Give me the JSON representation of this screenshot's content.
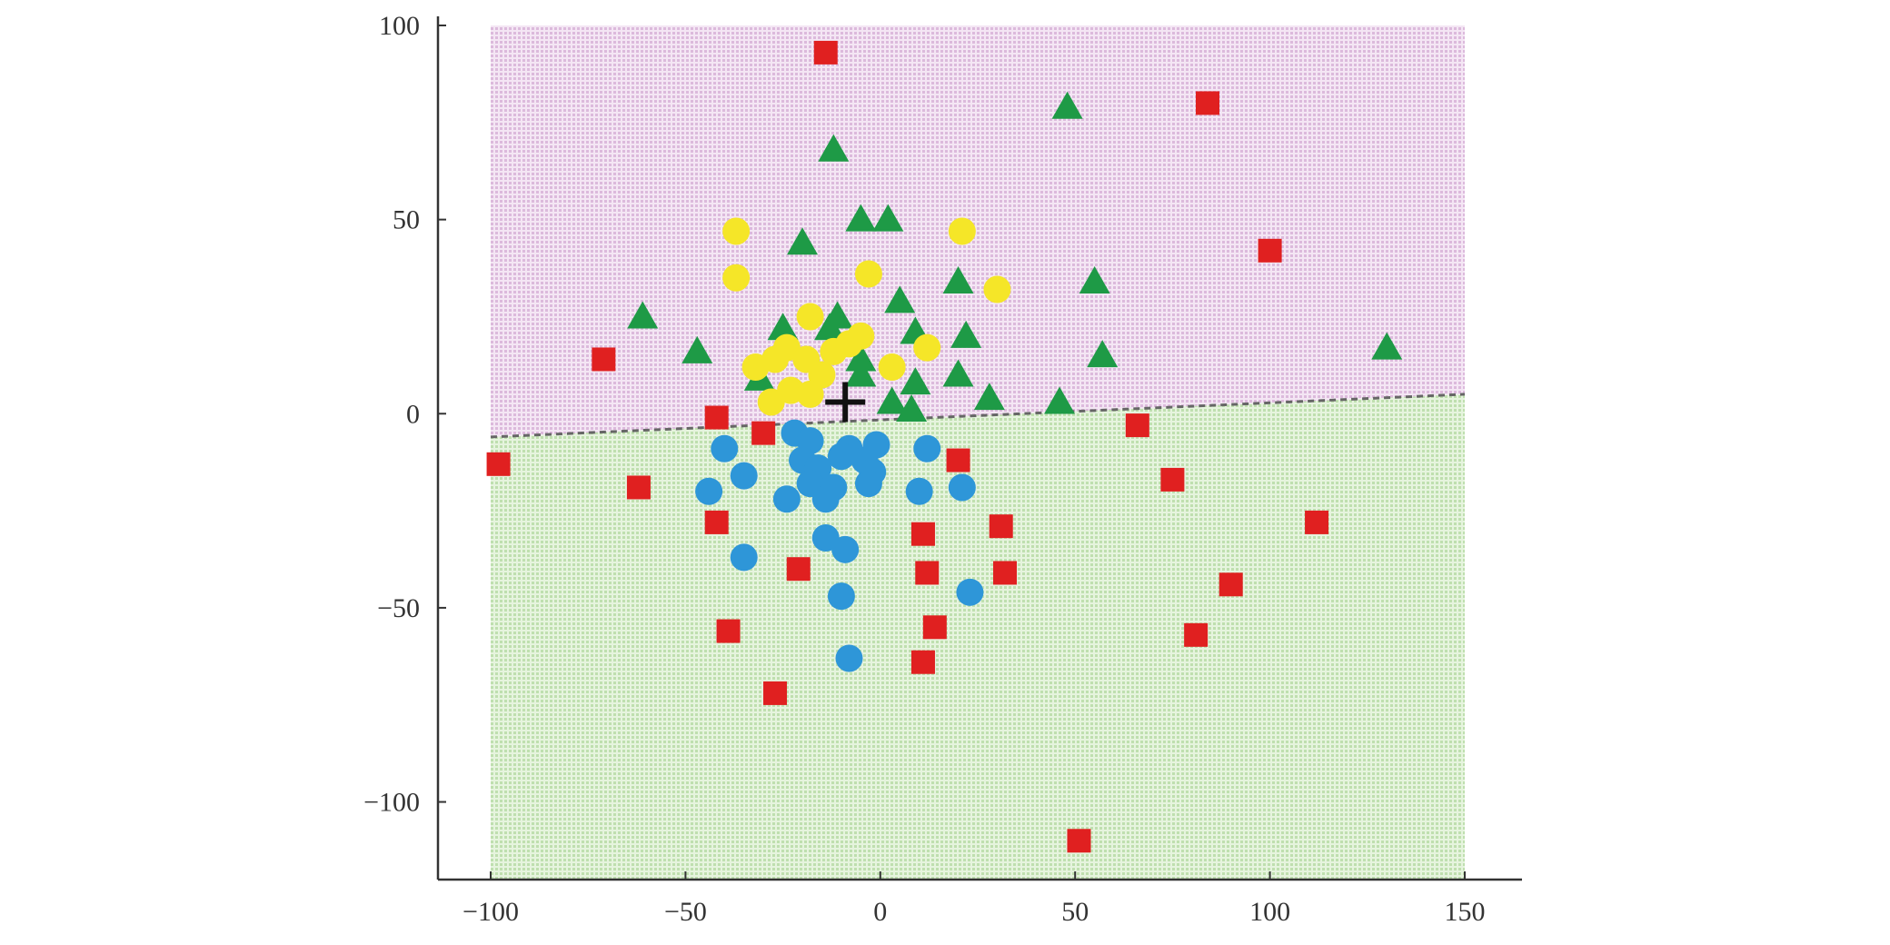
{
  "chart_data": {
    "type": "scatter",
    "title": "",
    "xlabel": "",
    "ylabel": "",
    "xlim": [
      -100,
      150
    ],
    "ylim": [
      -120,
      100
    ],
    "xticks": [
      -100,
      -50,
      0,
      50,
      100,
      150
    ],
    "yticks": [
      100,
      50,
      0,
      -50,
      -100
    ],
    "xtick_labels": [
      "−100",
      "−50",
      "0",
      "50",
      "100",
      "150"
    ],
    "ytick_labels": [
      "100",
      "50",
      "0",
      "−50",
      "−100"
    ],
    "grid": false,
    "legend": "none",
    "background_regions": [
      {
        "name": "upper region",
        "color": "#efd9ef"
      },
      {
        "name": "lower region",
        "color": "#dcf0d2"
      }
    ],
    "decision_boundary": {
      "style": "dashed",
      "color": "#666666",
      "x": [
        -100,
        150
      ],
      "y": [
        -6,
        5
      ]
    },
    "center_marker": {
      "shape": "plus",
      "color": "#111111",
      "x": -9,
      "y": 3
    },
    "series": [
      {
        "marker": "square",
        "color": "#e02020",
        "points": [
          [
            -14,
            93
          ],
          [
            84,
            80
          ],
          [
            100,
            42
          ],
          [
            -71,
            14
          ],
          [
            -98,
            -13
          ],
          [
            -62,
            -19
          ],
          [
            -42,
            -1
          ],
          [
            -30,
            -5
          ],
          [
            66,
            -3
          ],
          [
            20,
            -12
          ],
          [
            75,
            -17
          ],
          [
            112,
            -28
          ],
          [
            -42,
            -28
          ],
          [
            11,
            -31
          ],
          [
            31,
            -29
          ],
          [
            -21,
            -40
          ],
          [
            12,
            -41
          ],
          [
            32,
            -41
          ],
          [
            90,
            -44
          ],
          [
            -39,
            -56
          ],
          [
            14,
            -55
          ],
          [
            81,
            -57
          ],
          [
            11,
            -64
          ],
          [
            -27,
            -72
          ],
          [
            51,
            -110
          ]
        ]
      },
      {
        "marker": "triangle",
        "color": "#1e9a46",
        "points": [
          [
            48,
            79
          ],
          [
            -12,
            68
          ],
          [
            -20,
            44
          ],
          [
            -5,
            50
          ],
          [
            2,
            50
          ],
          [
            -61,
            25
          ],
          [
            -47,
            16
          ],
          [
            -25,
            22
          ],
          [
            -13,
            22
          ],
          [
            -11,
            25
          ],
          [
            5,
            29
          ],
          [
            9,
            21
          ],
          [
            20,
            34
          ],
          [
            22,
            20
          ],
          [
            55,
            34
          ],
          [
            57,
            15
          ],
          [
            130,
            17
          ],
          [
            -31,
            9
          ],
          [
            -5,
            14
          ],
          [
            -5,
            10
          ],
          [
            3,
            3
          ],
          [
            9,
            8
          ],
          [
            8,
            1
          ],
          [
            20,
            10
          ],
          [
            28,
            4
          ],
          [
            46,
            3
          ]
        ]
      },
      {
        "marker": "circle",
        "color": "#f5e628",
        "points": [
          [
            -37,
            47
          ],
          [
            -37,
            35
          ],
          [
            21,
            47
          ],
          [
            -3,
            36
          ],
          [
            30,
            32
          ],
          [
            -18,
            25
          ],
          [
            -32,
            12
          ],
          [
            -27,
            14
          ],
          [
            -24,
            17
          ],
          [
            -19,
            14
          ],
          [
            -15,
            10
          ],
          [
            -12,
            16
          ],
          [
            -8,
            18
          ],
          [
            -5,
            20
          ],
          [
            3,
            12
          ],
          [
            -23,
            6
          ],
          [
            -18,
            5
          ],
          [
            -28,
            3
          ],
          [
            12,
            17
          ]
        ]
      },
      {
        "marker": "circle",
        "color": "#2e96d8",
        "points": [
          [
            -22,
            -5
          ],
          [
            -18,
            -7
          ],
          [
            -8,
            -9
          ],
          [
            -1,
            -8
          ],
          [
            12,
            -9
          ],
          [
            -40,
            -9
          ],
          [
            -20,
            -12
          ],
          [
            -16,
            -14
          ],
          [
            -10,
            -11
          ],
          [
            -4,
            -12
          ],
          [
            -2,
            -15
          ],
          [
            -35,
            -16
          ],
          [
            -18,
            -18
          ],
          [
            -12,
            -19
          ],
          [
            -3,
            -18
          ],
          [
            -44,
            -20
          ],
          [
            -24,
            -22
          ],
          [
            -14,
            -22
          ],
          [
            10,
            -20
          ],
          [
            21,
            -19
          ],
          [
            -14,
            -32
          ],
          [
            -9,
            -35
          ],
          [
            -35,
            -37
          ],
          [
            23,
            -46
          ],
          [
            -10,
            -47
          ],
          [
            -8,
            -63
          ]
        ]
      }
    ]
  }
}
